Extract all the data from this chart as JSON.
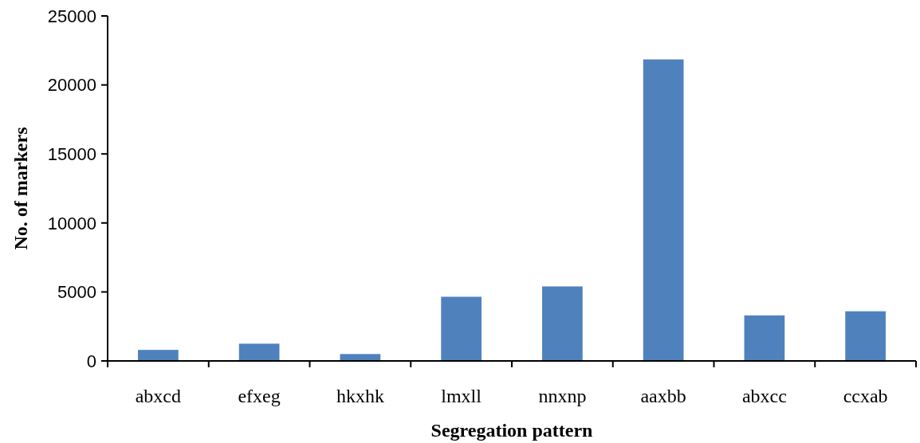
{
  "chart_data": {
    "type": "bar",
    "xlabel": "Segregation pattern",
    "ylabel": "No. of markers",
    "categories": [
      "abxcd",
      "efxeg",
      "hkxhk",
      "lmxll",
      "nnxnp",
      "aaxbb",
      "abxcc",
      "ccxab"
    ],
    "values": [
      800,
      1250,
      500,
      4650,
      5400,
      21850,
      3300,
      3600
    ],
    "color": "#4f81bd",
    "ylim": [
      0,
      25000
    ],
    "yticks": [
      0,
      5000,
      10000,
      15000,
      20000,
      25000
    ],
    "grid": false
  }
}
